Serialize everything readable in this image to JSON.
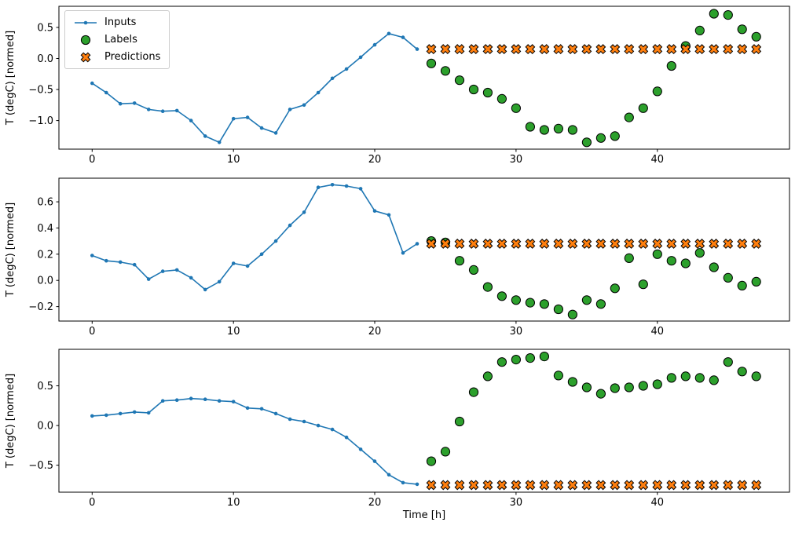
{
  "figure": {
    "background": "#ffffff",
    "xlabel": "Time [h]",
    "ylabel": "T (degC) [normed]",
    "colors": {
      "inputs": "#1f77b4",
      "labels": "#2ca02c",
      "predictions": "#ff7f0e",
      "marker_edge": "#000000"
    },
    "legend": {
      "position": "upper-left",
      "items": [
        {
          "label": "Inputs",
          "marker": "line-dot",
          "color": "#1f77b4"
        },
        {
          "label": "Labels",
          "marker": "circle",
          "color": "#2ca02c"
        },
        {
          "label": "Predictions",
          "marker": "x",
          "color": "#ff7f0e"
        }
      ]
    }
  },
  "chart_data": [
    {
      "type": "line",
      "title": "",
      "ylabel": "T (degC) [normed]",
      "xlim": [
        -2.35,
        49.35
      ],
      "ylim": [
        -1.46,
        0.84
      ],
      "xticks": [
        0,
        10,
        20,
        30,
        40
      ],
      "yticks": [
        0.5,
        0.0,
        -0.5,
        -1.0
      ],
      "grid": false,
      "series": [
        {
          "name": "Inputs",
          "style": "line+marker",
          "color": "#1f77b4",
          "x": [
            0,
            1,
            2,
            3,
            4,
            5,
            6,
            7,
            8,
            9,
            10,
            11,
            12,
            13,
            14,
            15,
            16,
            17,
            18,
            19,
            20,
            21,
            22,
            23
          ],
          "y": [
            -0.4,
            -0.55,
            -0.73,
            -0.72,
            -0.82,
            -0.85,
            -0.84,
            -1.0,
            -1.25,
            -1.35,
            -0.97,
            -0.95,
            -1.12,
            -1.2,
            -0.82,
            -0.75,
            -0.55,
            -0.32,
            -0.17,
            0.02,
            0.22,
            0.4,
            0.34,
            0.15
          ]
        },
        {
          "name": "Labels",
          "style": "circle",
          "color": "#2ca02c",
          "x": [
            24,
            25,
            26,
            27,
            28,
            29,
            30,
            31,
            32,
            33,
            34,
            35,
            36,
            37,
            38,
            39,
            40,
            41,
            42,
            43,
            44,
            45,
            46,
            47
          ],
          "y": [
            -0.08,
            -0.2,
            -0.35,
            -0.5,
            -0.55,
            -0.65,
            -0.8,
            -1.1,
            -1.15,
            -1.13,
            -1.15,
            -1.35,
            -1.28,
            -1.25,
            -0.95,
            -0.8,
            -0.53,
            -0.12,
            0.2,
            0.45,
            0.72,
            0.7,
            0.47,
            0.35
          ]
        },
        {
          "name": "Predictions",
          "style": "x",
          "color": "#ff7f0e",
          "x": [
            24,
            25,
            26,
            27,
            28,
            29,
            30,
            31,
            32,
            33,
            34,
            35,
            36,
            37,
            38,
            39,
            40,
            41,
            42,
            43,
            44,
            45,
            46,
            47
          ],
          "y": [
            0.15,
            0.15,
            0.15,
            0.15,
            0.15,
            0.15,
            0.15,
            0.15,
            0.15,
            0.15,
            0.15,
            0.15,
            0.15,
            0.15,
            0.15,
            0.15,
            0.15,
            0.15,
            0.15,
            0.15,
            0.15,
            0.15,
            0.15,
            0.15
          ]
        }
      ]
    },
    {
      "type": "line",
      "title": "",
      "ylabel": "T (degC) [normed]",
      "xlim": [
        -2.35,
        49.35
      ],
      "ylim": [
        -0.31,
        0.78
      ],
      "xticks": [
        0,
        10,
        20,
        30,
        40
      ],
      "yticks": [
        0.6,
        0.4,
        0.2,
        0.0,
        -0.2
      ],
      "grid": false,
      "series": [
        {
          "name": "Inputs",
          "style": "line+marker",
          "color": "#1f77b4",
          "x": [
            0,
            1,
            2,
            3,
            4,
            5,
            6,
            7,
            8,
            9,
            10,
            11,
            12,
            13,
            14,
            15,
            16,
            17,
            18,
            19,
            20,
            21,
            22,
            23
          ],
          "y": [
            0.19,
            0.15,
            0.14,
            0.12,
            0.01,
            0.07,
            0.08,
            0.02,
            -0.07,
            -0.01,
            0.13,
            0.11,
            0.2,
            0.3,
            0.42,
            0.52,
            0.71,
            0.73,
            0.72,
            0.7,
            0.53,
            0.5,
            0.21,
            0.28
          ]
        },
        {
          "name": "Labels",
          "style": "circle",
          "color": "#2ca02c",
          "x": [
            24,
            25,
            26,
            27,
            28,
            29,
            30,
            31,
            32,
            33,
            34,
            35,
            36,
            37,
            38,
            39,
            40,
            41,
            42,
            43,
            44,
            45,
            46,
            47
          ],
          "y": [
            0.3,
            0.29,
            0.15,
            0.08,
            -0.05,
            -0.12,
            -0.15,
            -0.17,
            -0.18,
            -0.22,
            -0.26,
            -0.15,
            -0.18,
            -0.06,
            0.17,
            -0.03,
            0.2,
            0.15,
            0.13,
            0.21,
            0.1,
            0.02,
            -0.04,
            -0.01
          ]
        },
        {
          "name": "Predictions",
          "style": "x",
          "color": "#ff7f0e",
          "x": [
            24,
            25,
            26,
            27,
            28,
            29,
            30,
            31,
            32,
            33,
            34,
            35,
            36,
            37,
            38,
            39,
            40,
            41,
            42,
            43,
            44,
            45,
            46,
            47
          ],
          "y": [
            0.28,
            0.28,
            0.28,
            0.28,
            0.28,
            0.28,
            0.28,
            0.28,
            0.28,
            0.28,
            0.28,
            0.28,
            0.28,
            0.28,
            0.28,
            0.28,
            0.28,
            0.28,
            0.28,
            0.28,
            0.28,
            0.28,
            0.28,
            0.28
          ]
        }
      ]
    },
    {
      "type": "line",
      "title": "",
      "xlabel": "Time [h]",
      "ylabel": "T (degC) [normed]",
      "xlim": [
        -2.35,
        49.35
      ],
      "ylim": [
        -0.84,
        0.96
      ],
      "xticks": [
        0,
        10,
        20,
        30,
        40
      ],
      "yticks": [
        0.5,
        0.0,
        -0.5
      ],
      "grid": false,
      "series": [
        {
          "name": "Inputs",
          "style": "line+marker",
          "color": "#1f77b4",
          "x": [
            0,
            1,
            2,
            3,
            4,
            5,
            6,
            7,
            8,
            9,
            10,
            11,
            12,
            13,
            14,
            15,
            16,
            17,
            18,
            19,
            20,
            21,
            22,
            23
          ],
          "y": [
            0.12,
            0.13,
            0.15,
            0.17,
            0.16,
            0.31,
            0.32,
            0.34,
            0.33,
            0.31,
            0.3,
            0.22,
            0.21,
            0.15,
            0.08,
            0.05,
            0.0,
            -0.05,
            -0.15,
            -0.3,
            -0.45,
            -0.62,
            -0.72,
            -0.74
          ]
        },
        {
          "name": "Labels",
          "style": "circle",
          "color": "#2ca02c",
          "x": [
            24,
            25,
            26,
            27,
            28,
            29,
            30,
            31,
            32,
            33,
            34,
            35,
            36,
            37,
            38,
            39,
            40,
            41,
            42,
            43,
            44,
            45,
            46,
            47
          ],
          "y": [
            -0.45,
            -0.33,
            0.05,
            0.42,
            0.62,
            0.8,
            0.83,
            0.85,
            0.87,
            0.63,
            0.55,
            0.48,
            0.4,
            0.47,
            0.48,
            0.5,
            0.52,
            0.6,
            0.62,
            0.6,
            0.57,
            0.8,
            0.68,
            0.62
          ]
        },
        {
          "name": "Predictions",
          "style": "x",
          "color": "#ff7f0e",
          "x": [
            24,
            25,
            26,
            27,
            28,
            29,
            30,
            31,
            32,
            33,
            34,
            35,
            36,
            37,
            38,
            39,
            40,
            41,
            42,
            43,
            44,
            45,
            46,
            47
          ],
          "y": [
            -0.75,
            -0.75,
            -0.75,
            -0.75,
            -0.75,
            -0.75,
            -0.75,
            -0.75,
            -0.75,
            -0.75,
            -0.75,
            -0.75,
            -0.75,
            -0.75,
            -0.75,
            -0.75,
            -0.75,
            -0.75,
            -0.75,
            -0.75,
            -0.75,
            -0.75,
            -0.75,
            -0.75
          ]
        }
      ]
    }
  ]
}
